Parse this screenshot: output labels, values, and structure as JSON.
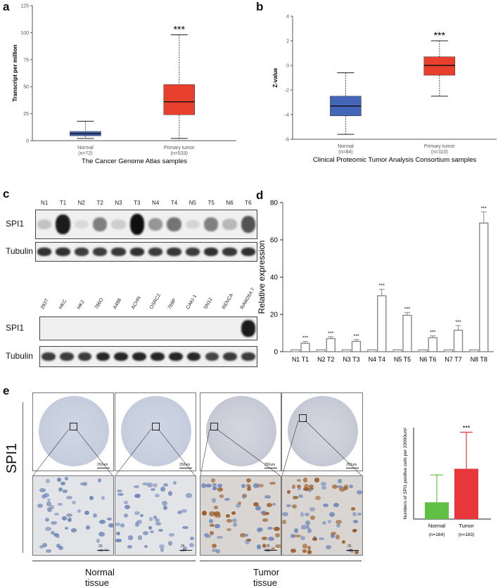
{
  "panels": {
    "a": "a",
    "b": "b",
    "c": "c",
    "d": "d",
    "e": "e"
  },
  "chart_data": [
    {
      "id": "a",
      "type": "boxplot",
      "ylabel": "Transcript per million",
      "xlabel": "The Cancer Genome Atlas samples",
      "yticks": [
        0,
        25,
        50,
        75,
        100,
        125
      ],
      "ylim": [
        0,
        125
      ],
      "categories": [
        "Normal",
        "Primary tumor"
      ],
      "counts": [
        "(n=72)",
        "(n=533)"
      ],
      "colors": [
        "#4466b8",
        "#e8402d"
      ],
      "boxes": [
        {
          "min": 2,
          "q1": 4.5,
          "median": 6.5,
          "q3": 8.5,
          "max": 18
        },
        {
          "min": 2,
          "q1": 24,
          "median": 36,
          "q3": 52,
          "max": 98
        }
      ],
      "significance": "***"
    },
    {
      "id": "b",
      "type": "boxplot",
      "ylabel": "Z-value",
      "xlabel": "Clinical Proteomic Tumor Analysis Consortium samples",
      "yticks": [
        -6,
        -4,
        -2,
        0,
        2,
        4
      ],
      "ylim": [
        -6,
        4
      ],
      "categories": [
        "Normal",
        "Primary tumor"
      ],
      "counts": [
        "(n=84)",
        "(n=110)"
      ],
      "colors": [
        "#4466b8",
        "#e8402d"
      ],
      "boxes": [
        {
          "min": -5.6,
          "q1": -4.1,
          "median": -3.3,
          "q3": -2.5,
          "max": -0.6
        },
        {
          "min": -2.5,
          "q1": -0.8,
          "median": 0.0,
          "q3": 0.7,
          "max": 2.0
        }
      ],
      "significance": "***"
    },
    {
      "id": "d",
      "type": "bar",
      "ylabel": "Relative expression",
      "yticks": [
        0,
        20,
        40,
        60,
        80
      ],
      "ylim": [
        0,
        80
      ],
      "categories": [
        "N1 T1",
        "N2 T2",
        "N3 T3",
        "N4 T4",
        "N5 T5",
        "N6 T6",
        "N7 T7",
        "N8 T8"
      ],
      "normal_values": [
        1,
        1,
        1,
        1,
        1,
        1,
        1,
        1
      ],
      "tumor_values": [
        4.5,
        7,
        5.5,
        30,
        19.5,
        7.5,
        11.5,
        69
      ],
      "tumor_errors": [
        1,
        1,
        1,
        3.5,
        1.5,
        1,
        2.5,
        6
      ],
      "significance": "***"
    },
    {
      "id": "e-bar",
      "type": "bar",
      "ylabel": "Numbers of SPI1 positive cells per 20000um²",
      "ylim": [
        0,
        60
      ],
      "categories": [
        "Normal",
        "Tumor"
      ],
      "counts": [
        "(n=164)",
        "(n=183)"
      ],
      "values": [
        11,
        33
      ],
      "errors": [
        18,
        24
      ],
      "colors": [
        "#5fc043",
        "#e8373b"
      ],
      "significance": "***"
    }
  ],
  "blot_c1": {
    "lanes": [
      "N1",
      "T1",
      "N2",
      "T2",
      "N3",
      "T3",
      "N4",
      "T4",
      "N5",
      "T5",
      "N6",
      "T6"
    ],
    "rows": [
      "SPI1",
      "Tubulin"
    ],
    "spi1_intensity": [
      0.2,
      0.95,
      0.1,
      0.5,
      0.15,
      1.0,
      0.4,
      0.55,
      0.12,
      0.5,
      0.25,
      0.7
    ],
    "tubulin_intensity": [
      0.85,
      0.85,
      0.8,
      0.8,
      0.82,
      0.85,
      0.8,
      0.82,
      0.8,
      0.85,
      0.82,
      0.85
    ]
  },
  "blot_c2": {
    "lanes": [
      "293T",
      "HKC",
      "HK2",
      "786O",
      "A498",
      "ACHN",
      "OSRC2",
      "769P",
      "CAKI-1",
      "SN12",
      "RENCA",
      "RAW264.7"
    ],
    "rows": [
      "SPI1",
      "Tubulin"
    ],
    "spi1_intensity": [
      0,
      0,
      0,
      0,
      0,
      0,
      0,
      0,
      0,
      0,
      0,
      0.95
    ],
    "tubulin_intensity": [
      0.8,
      0.8,
      0.8,
      0.9,
      0.9,
      0.9,
      0.9,
      0.9,
      0.9,
      0.75,
      0.8,
      0.8
    ]
  },
  "ihc": {
    "row_label": "SPI1",
    "scale_top": [
      "250um",
      "250um",
      "250um",
      "250um"
    ],
    "scale_bottom": [
      "25 um",
      "25 um",
      "25 um",
      "25 um"
    ],
    "group_labels": [
      "Normal tissue",
      "Tumor tissue"
    ]
  }
}
